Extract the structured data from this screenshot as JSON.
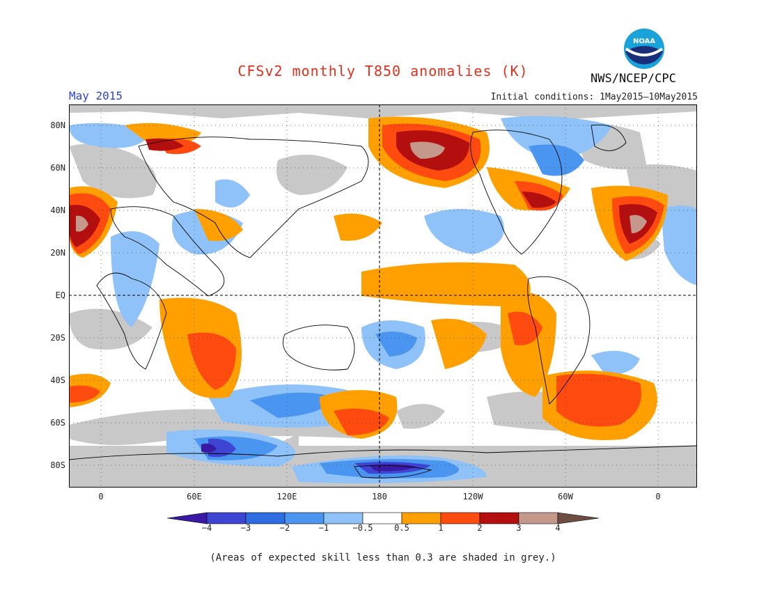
{
  "header": {
    "title": "CFSv2 monthly T850 anomalies (K)",
    "month": "May 2015",
    "initial_conditions": "Initial conditions: 1May2015—10May2015",
    "org": "NWS/NCEP/CPC",
    "logo_text": "NOAA"
  },
  "axes": {
    "lat_labels": [
      "80N",
      "60N",
      "40N",
      "20N",
      "EQ",
      "20S",
      "40S",
      "60S",
      "80S"
    ],
    "lon_labels": [
      "0",
      "60E",
      "120E",
      "180",
      "120W",
      "60W",
      "0"
    ]
  },
  "colorbar": {
    "labels": [
      "−4",
      "−3",
      "−2",
      "−1",
      "−0.5",
      "0.5",
      "1",
      "2",
      "3",
      "4"
    ],
    "colors": [
      "#3a1aa5",
      "#3d45d2",
      "#2f6ee0",
      "#4a95f0",
      "#8fc2f8",
      "#ffffff",
      "#ffa000",
      "#ff4a10",
      "#b30f0f",
      "#c4998c",
      "#6d4c41"
    ]
  },
  "footnote": "(Areas of expected skill less than 0.3 are shaded in grey.)",
  "colors": {
    "skill_grey": "#c8c8c8",
    "title": "#e0301e",
    "month": "#2b45d6"
  }
}
